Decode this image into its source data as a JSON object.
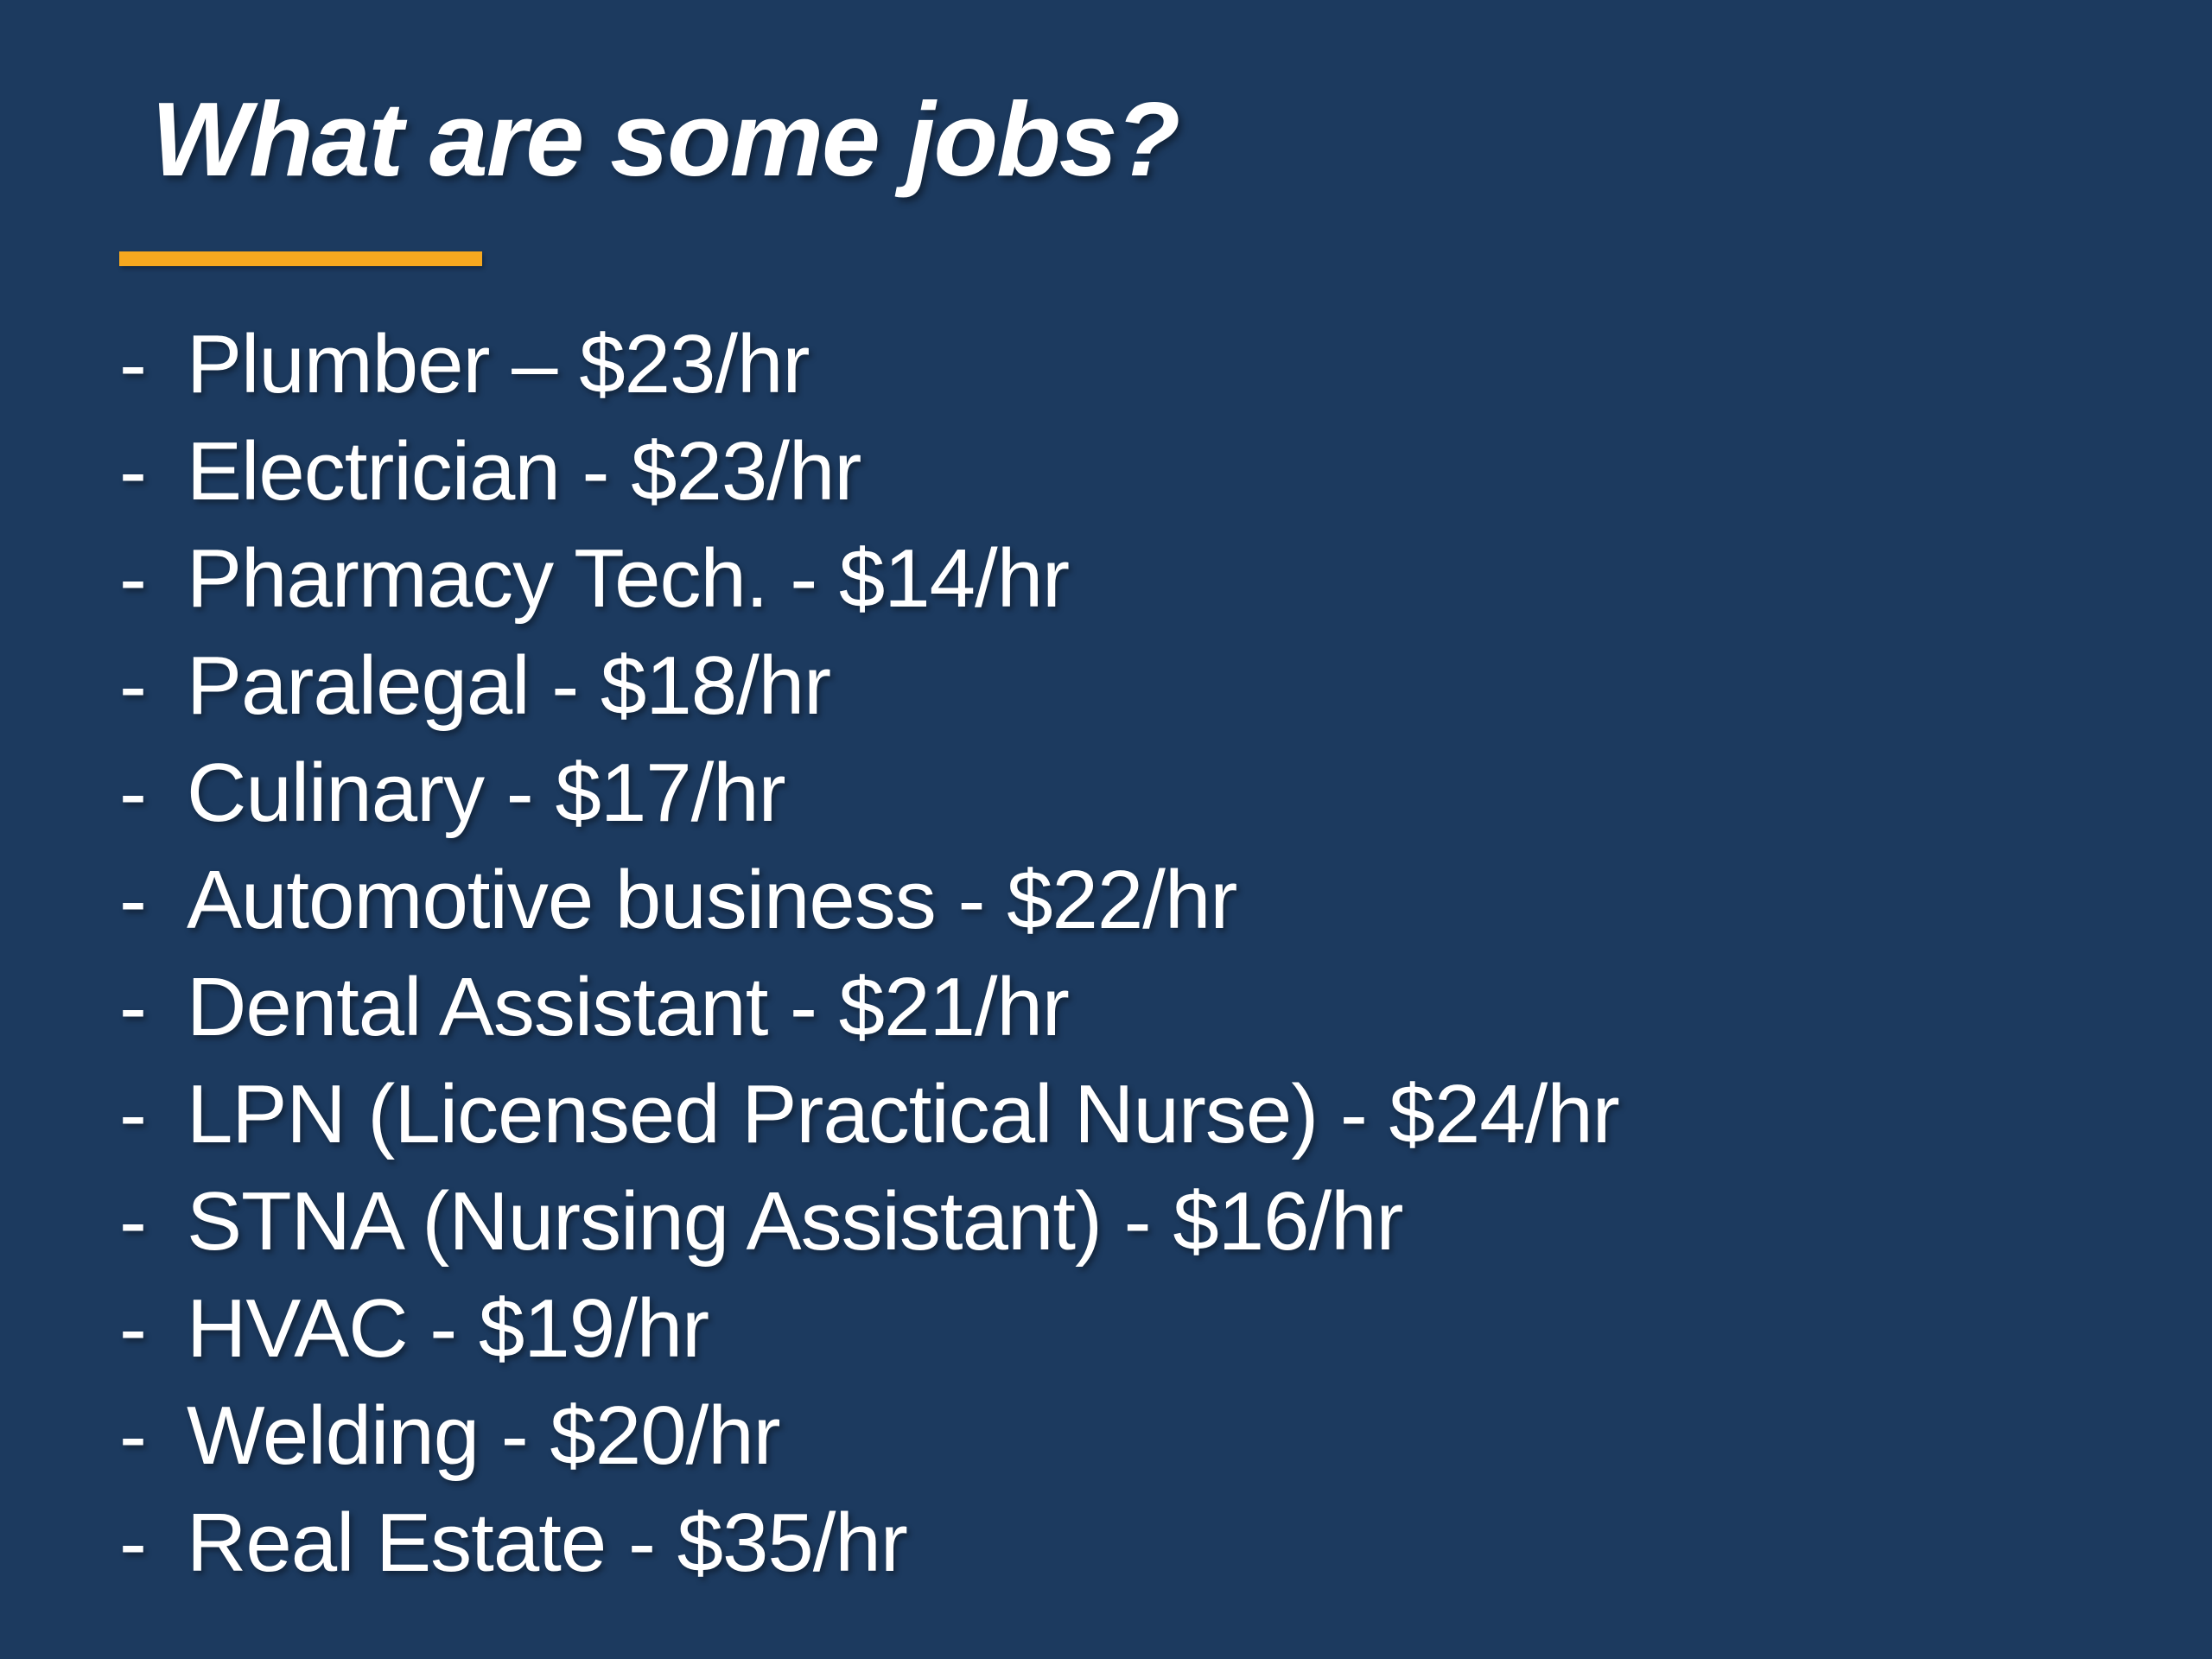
{
  "slide": {
    "title": "What are some jobs?",
    "bullet": "-",
    "background_color": "#1c3a5f",
    "accent_color": "#f6a81f",
    "text_color": "#ffffff",
    "jobs": [
      {
        "name": "Plumber",
        "rate": "$23/hr",
        "display": "Plumber – $23/hr"
      },
      {
        "name": "Electrician",
        "rate": "$23/hr",
        "display": "Electrician - $23/hr"
      },
      {
        "name": "Pharmacy Tech.",
        "rate": "$14/hr",
        "display": "Pharmacy Tech. - $14/hr"
      },
      {
        "name": "Paralegal",
        "rate": "$18/hr",
        "display": "Paralegal - $18/hr"
      },
      {
        "name": "Culinary",
        "rate": "$17/hr",
        "display": "Culinary - $17/hr"
      },
      {
        "name": "Automotive business",
        "rate": "$22/hr",
        "display": "Automotive business - $22/hr"
      },
      {
        "name": "Dental Assistant",
        "rate": "$21/hr",
        "display": "Dental Assistant - $21/hr"
      },
      {
        "name": "LPN (Licensed Practical Nurse)",
        "rate": "$24/hr",
        "display": "LPN (Licensed Practical Nurse) - $24/hr"
      },
      {
        "name": "STNA (Nursing Assistant)",
        "rate": "$16/hr",
        "display": "STNA (Nursing Assistant) - $16/hr"
      },
      {
        "name": "HVAC",
        "rate": "$19/hr",
        "display": "HVAC - $19/hr"
      },
      {
        "name": "Welding",
        "rate": "$20/hr",
        "display": "Welding - $20/hr"
      },
      {
        "name": "Real Estate",
        "rate": "$35/hr",
        "display": "Real Estate - $35/hr"
      }
    ]
  }
}
